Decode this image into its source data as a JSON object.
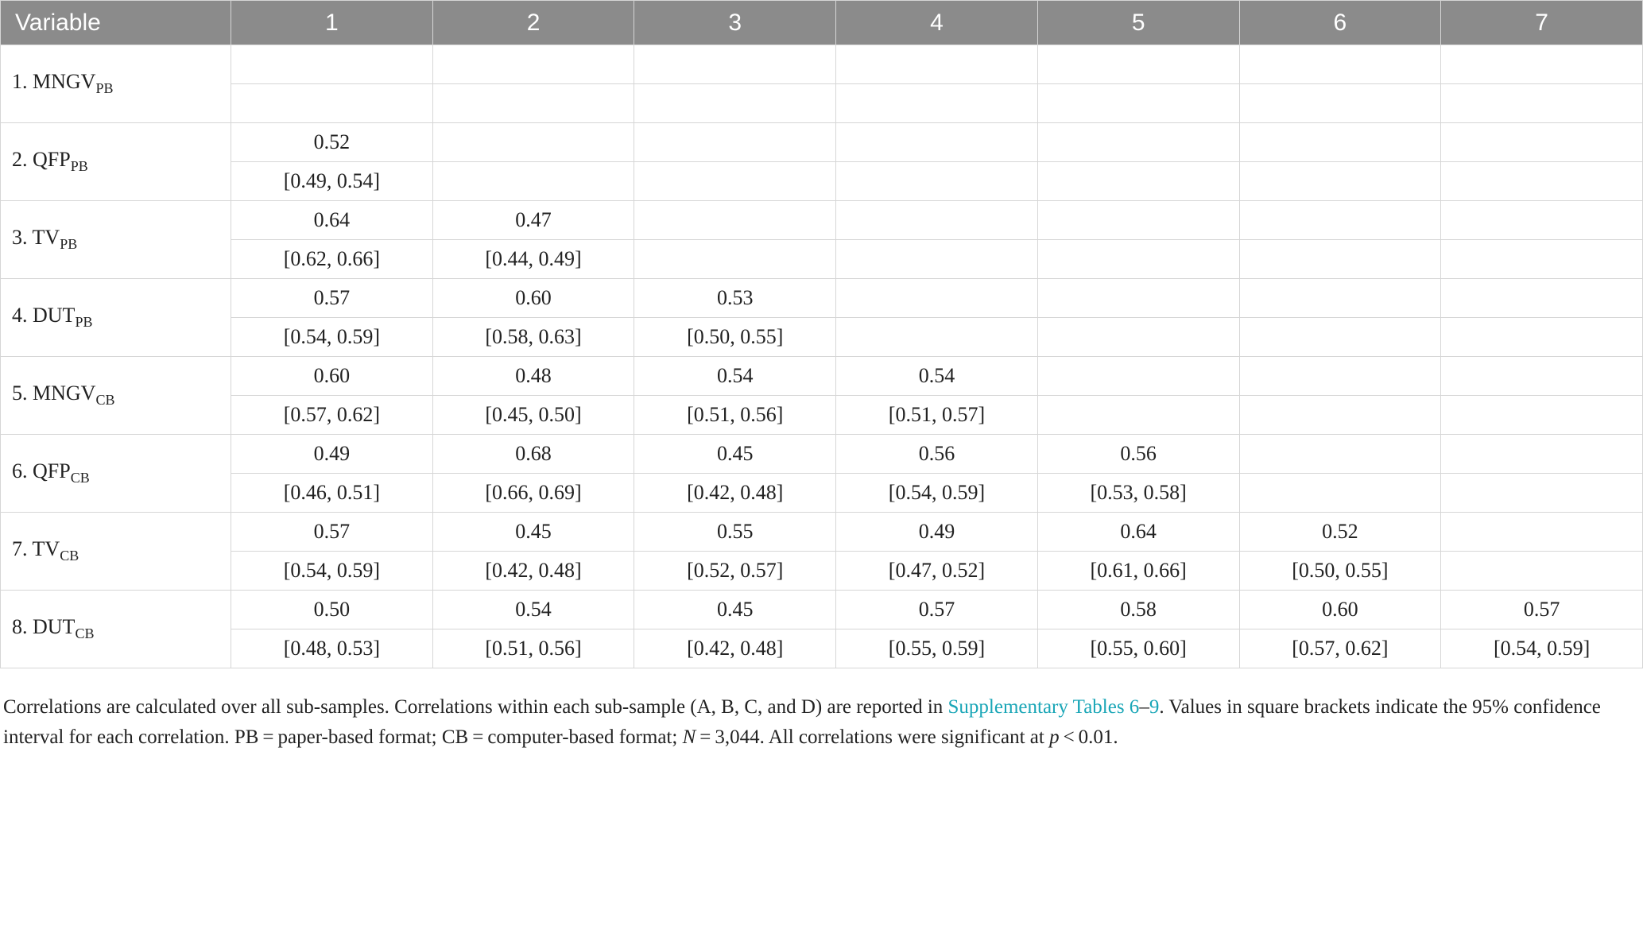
{
  "table": {
    "header_bg": "#8b8b8b",
    "header_text_color": "#ffffff",
    "border_color": "#d6d6d6",
    "columns": [
      "Variable",
      "1",
      "2",
      "3",
      "4",
      "5",
      "6",
      "7"
    ],
    "rows": [
      {
        "label_num": "1. ",
        "label_main": "MNGV",
        "label_sub": "PB",
        "vals": [
          "",
          "",
          "",
          "",
          "",
          "",
          ""
        ],
        "cis": [
          "",
          "",
          "",
          "",
          "",
          "",
          ""
        ]
      },
      {
        "label_num": "2. ",
        "label_main": "QFP",
        "label_sub": "PB",
        "vals": [
          "0.52",
          "",
          "",
          "",
          "",
          "",
          ""
        ],
        "cis": [
          "[0.49, 0.54]",
          "",
          "",
          "",
          "",
          "",
          ""
        ]
      },
      {
        "label_num": "3. ",
        "label_main": "TV",
        "label_sub": "PB",
        "vals": [
          "0.64",
          "0.47",
          "",
          "",
          "",
          "",
          ""
        ],
        "cis": [
          "[0.62, 0.66]",
          "[0.44, 0.49]",
          "",
          "",
          "",
          "",
          ""
        ]
      },
      {
        "label_num": "4. ",
        "label_main": "DUT",
        "label_sub": "PB",
        "vals": [
          "0.57",
          "0.60",
          "0.53",
          "",
          "",
          "",
          ""
        ],
        "cis": [
          "[0.54, 0.59]",
          "[0.58, 0.63]",
          "[0.50, 0.55]",
          "",
          "",
          "",
          ""
        ]
      },
      {
        "label_num": "5. ",
        "label_main": "MNGV",
        "label_sub": "CB",
        "vals": [
          "0.60",
          "0.48",
          "0.54",
          "0.54",
          "",
          "",
          ""
        ],
        "cis": [
          "[0.57, 0.62]",
          "[0.45, 0.50]",
          "[0.51, 0.56]",
          "[0.51, 0.57]",
          "",
          "",
          ""
        ]
      },
      {
        "label_num": "6. ",
        "label_main": "QFP",
        "label_sub": "CB",
        "vals": [
          "0.49",
          "0.68",
          "0.45",
          "0.56",
          "0.56",
          "",
          ""
        ],
        "cis": [
          "[0.46, 0.51]",
          "[0.66, 0.69]",
          "[0.42, 0.48]",
          "[0.54, 0.59]",
          "[0.53, 0.58]",
          "",
          ""
        ]
      },
      {
        "label_num": "7. ",
        "label_main": "TV",
        "label_sub": "CB",
        "vals": [
          "0.57",
          "0.45",
          "0.55",
          "0.49",
          "0.64",
          "0.52",
          ""
        ],
        "cis": [
          "[0.54, 0.59]",
          "[0.42, 0.48]",
          "[0.52, 0.57]",
          "[0.47, 0.52]",
          "[0.61, 0.66]",
          "[0.50, 0.55]",
          ""
        ]
      },
      {
        "label_num": "8. ",
        "label_main": "DUT",
        "label_sub": "CB",
        "vals": [
          "0.50",
          "0.54",
          "0.45",
          "0.57",
          "0.58",
          "0.60",
          "0.57"
        ],
        "cis": [
          "[0.48, 0.53]",
          "[0.51, 0.56]",
          "[0.42, 0.48]",
          "[0.55, 0.59]",
          "[0.55, 0.60]",
          "[0.57, 0.62]",
          "[0.54, 0.59]"
        ]
      }
    ]
  },
  "caption": {
    "part1": "Correlations are calculated over all sub-samples. Correlations within each sub-sample (A, B, C, and D) are reported in ",
    "link_text": "Supplementary Tables 6",
    "dash": "–",
    "link_text2": "9",
    "part2": ". Values in square brackets indicate the 95% confidence interval for each correlation. PB = paper-based format; CB = computer-based format; ",
    "n_label": "N",
    "n_eq": " = 3,044. All correlations were significant at ",
    "p_label": "p",
    "p_tail": " < 0.01.",
    "link_color": "#1aa6b7"
  }
}
